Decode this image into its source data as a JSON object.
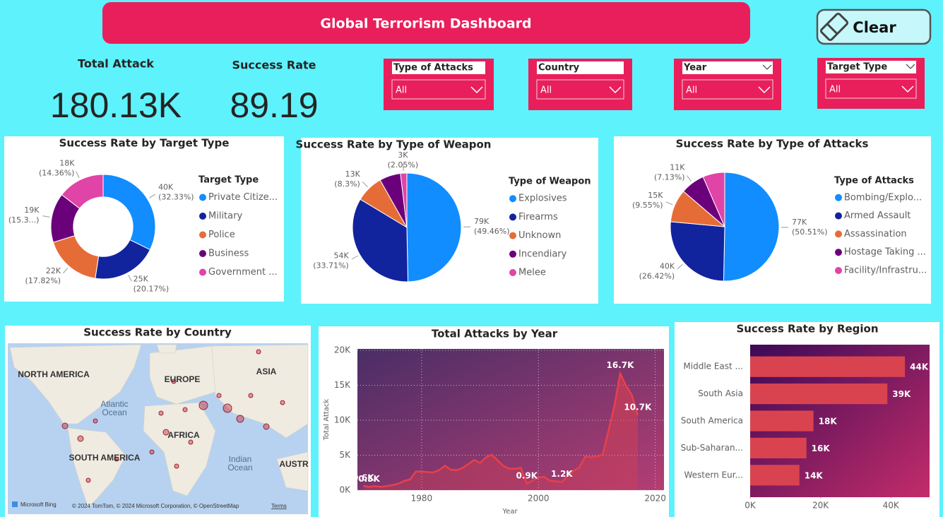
{
  "header": {
    "title": "Global Terrorism Dashboard",
    "clear_button": "Clear"
  },
  "kpis": [
    {
      "label": "Total Attack",
      "value": "180.13K"
    },
    {
      "label": "Success Rate",
      "value": "89.19"
    }
  ],
  "filters": [
    {
      "label": "Type of Attacks",
      "selection": "All"
    },
    {
      "label": "Country",
      "selection": "All"
    },
    {
      "label": "Year",
      "selection": "All"
    },
    {
      "label": "Target Type",
      "selection": "All"
    }
  ],
  "map": {
    "title": "Success Rate by Country",
    "labels": [
      "NORTH AMERICA",
      "EUROPE",
      "ASIA",
      "Atlantic",
      "Ocean",
      "AFRICA",
      "SOUTH AMERICA",
      "Indian",
      "Ocean",
      "AUSTR"
    ],
    "logo": "Microsoft Bing",
    "attribution": "© 2024 TomTom, © 2024 Microsoft Corporation, © OpenStreetMap",
    "terms": "Terms"
  },
  "chart_data": [
    {
      "type": "donut",
      "title": "Success Rate by Target Type",
      "legend_title": "Target Type",
      "categories": [
        "Private Citize...",
        "Military",
        "Police",
        "Business",
        "Government ..."
      ],
      "colors": [
        "#118dff",
        "#12239e",
        "#e66c37",
        "#6b007b",
        "#e044a7"
      ],
      "values": [
        40000,
        25000,
        22000,
        19000,
        18000
      ],
      "value_labels": [
        "40K",
        "25K",
        "22K",
        "19K",
        "18K"
      ],
      "shares": [
        32.33,
        20.17,
        17.82,
        15.32,
        14.36
      ],
      "share_labels": [
        "(32.33%)",
        "(20.17%)",
        "(17.82%)",
        "(15.3...)",
        "(14.36%)"
      ]
    },
    {
      "type": "pie",
      "title": "Success Rate by Type of Weapon",
      "legend_title": "Type of Weapon",
      "categories": [
        "Explosives",
        "Firearms",
        "Unknown",
        "Incendiary",
        "Melee"
      ],
      "colors": [
        "#118dff",
        "#12239e",
        "#e66c37",
        "#6b007b",
        "#e044a7"
      ],
      "values": [
        79000,
        54000,
        13000,
        10000,
        3000
      ],
      "value_labels": [
        "79K",
        "54K",
        "13K",
        null,
        "3K"
      ],
      "shares": [
        49.46,
        33.71,
        8.3,
        null,
        2.05
      ],
      "share_labels": [
        "(49.46%)",
        "(33.71%)",
        "(8.3%)",
        null,
        "(2.05%)"
      ]
    },
    {
      "type": "pie",
      "title": "Success Rate by Type of Attacks",
      "legend_title": "Type of Attacks",
      "categories": [
        "Bombing/Explo...",
        "Armed Assault",
        "Assassination",
        "Hostage Taking ...",
        "Facility/Infrastru..."
      ],
      "colors": [
        "#118dff",
        "#12239e",
        "#e66c37",
        "#6b007b",
        "#e044a7"
      ],
      "values": [
        77000,
        40000,
        15000,
        11000,
        10000
      ],
      "value_labels": [
        "77K",
        "40K",
        "15K",
        "11K",
        null
      ],
      "shares": [
        50.51,
        26.42,
        9.55,
        7.13,
        null
      ],
      "share_labels": [
        "(50.51%)",
        "(26.42%)",
        "(9.55%)",
        "(7.13%)",
        null
      ]
    },
    {
      "type": "line",
      "title": "Total Attacks by Year",
      "x_label": "Year",
      "y_label": "Total Attack",
      "color": "#e8404a",
      "grid": true,
      "x": [
        1970,
        1971,
        1972,
        1973,
        1974,
        1975,
        1976,
        1977,
        1978,
        1979,
        1980,
        1981,
        1982,
        1983,
        1984,
        1985,
        1986,
        1987,
        1988,
        1989,
        1990,
        1991,
        1992,
        1994,
        1995,
        1996,
        1997,
        1998,
        1999,
        2000,
        2001,
        2002,
        2003,
        2004,
        2005,
        2006,
        2007,
        2008,
        2009,
        2010,
        2011,
        2012,
        2013,
        2014,
        2015,
        2016,
        2017
      ],
      "values": [
        620,
        471,
        568,
        473,
        581,
        740,
        923,
        1319,
        1526,
        2662,
        2662,
        2586,
        2544,
        2870,
        3495,
        2915,
        2860,
        3183,
        3721,
        4324,
        3887,
        4683,
        5071,
        3456,
        3081,
        3058,
        3197,
        934,
        1395,
        1814,
        1906,
        1333,
        1278,
        1166,
        2017,
        2758,
        3242,
        4805,
        4721,
        4826,
        5076,
        8522,
        12036,
        16700,
        14965,
        13587,
        10700
      ],
      "value_labels": [
        "0.6K",
        "0.5K",
        null,
        null,
        null,
        null,
        null,
        null,
        null,
        null,
        null,
        null,
        null,
        null,
        null,
        null,
        null,
        null,
        null,
        null,
        null,
        null,
        null,
        null,
        null,
        null,
        null,
        "0.9K",
        null,
        null,
        null,
        null,
        null,
        "1.2K",
        null,
        null,
        null,
        null,
        null,
        null,
        null,
        null,
        null,
        "16.7K",
        null,
        null,
        "10.7K"
      ],
      "xlim": [
        1969,
        2021.5
      ],
      "xticks": [
        1980,
        2000,
        2020
      ],
      "ylim": [
        0,
        20200
      ],
      "yticks": [
        {
          "value": 0,
          "label": "0K"
        },
        {
          "value": 5000,
          "label": "5K"
        },
        {
          "value": 10000,
          "label": "10K"
        },
        {
          "value": 15000,
          "label": "15K"
        },
        {
          "value": 20000,
          "label": "20K"
        }
      ]
    },
    {
      "type": "bar",
      "orientation": "horizontal",
      "title": "Success Rate by Region",
      "color": "#d9434f",
      "categories": [
        "Middle East ...",
        "South Asia",
        "South America",
        "Sub-Saharan...",
        "Western Eur..."
      ],
      "values": [
        44000,
        39000,
        18000,
        16000,
        14000
      ],
      "value_labels": [
        "44K",
        "39K",
        "18K",
        "16K",
        "14K"
      ],
      "xlim": [
        0,
        51000
      ],
      "xticks": [
        {
          "value": 0,
          "label": "0K"
        },
        {
          "value": 20000,
          "label": "20K"
        },
        {
          "value": 40000,
          "label": "40K"
        }
      ]
    }
  ]
}
